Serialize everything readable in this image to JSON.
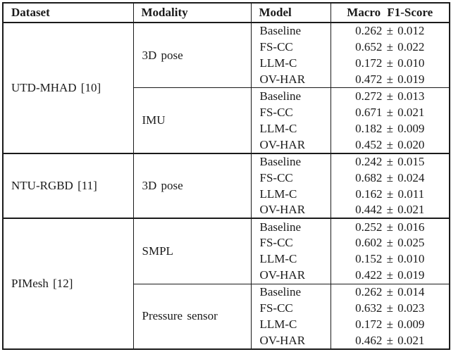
{
  "table": {
    "headers": {
      "dataset": "Dataset",
      "modality": "Modality",
      "model": "Model",
      "score": "Macro F1-Score"
    },
    "groups": [
      {
        "dataset": "UTD-MHAD [10]",
        "modalities": [
          {
            "name": "3D pose",
            "rows": [
              {
                "model": "Baseline",
                "score": "0.262 ± 0.012"
              },
              {
                "model": "FS-CC",
                "score": "0.652 ± 0.022"
              },
              {
                "model": "LLM-C",
                "score": "0.172 ± 0.010"
              },
              {
                "model": "OV-HAR",
                "score": "0.472 ± 0.019"
              }
            ]
          },
          {
            "name": "IMU",
            "rows": [
              {
                "model": "Baseline",
                "score": "0.272 ± 0.013"
              },
              {
                "model": "FS-CC",
                "score": "0.671 ± 0.021"
              },
              {
                "model": "LLM-C",
                "score": "0.182 ± 0.009"
              },
              {
                "model": "OV-HAR",
                "score": "0.452 ± 0.020"
              }
            ]
          }
        ]
      },
      {
        "dataset": "NTU-RGBD [11]",
        "modalities": [
          {
            "name": "3D pose",
            "rows": [
              {
                "model": "Baseline",
                "score": "0.242 ± 0.015"
              },
              {
                "model": "FS-CC",
                "score": "0.682 ± 0.024"
              },
              {
                "model": "LLM-C",
                "score": "0.162 ± 0.011"
              },
              {
                "model": "OV-HAR",
                "score": "0.442 ± 0.021"
              }
            ]
          }
        ]
      },
      {
        "dataset": "PIMesh [12]",
        "modalities": [
          {
            "name": "SMPL",
            "rows": [
              {
                "model": "Baseline",
                "score": "0.252 ± 0.016"
              },
              {
                "model": "FS-CC",
                "score": "0.602 ± 0.025"
              },
              {
                "model": "LLM-C",
                "score": "0.152 ± 0.010"
              },
              {
                "model": "OV-HAR",
                "score": "0.422 ± 0.019"
              }
            ]
          },
          {
            "name": "Pressure sensor",
            "rows": [
              {
                "model": "Baseline",
                "score": "0.262 ± 0.014"
              },
              {
                "model": "FS-CC",
                "score": "0.632 ± 0.023"
              },
              {
                "model": "LLM-C",
                "score": "0.172 ± 0.009"
              },
              {
                "model": "OV-HAR",
                "score": "0.462 ± 0.021"
              }
            ]
          }
        ]
      }
    ]
  }
}
